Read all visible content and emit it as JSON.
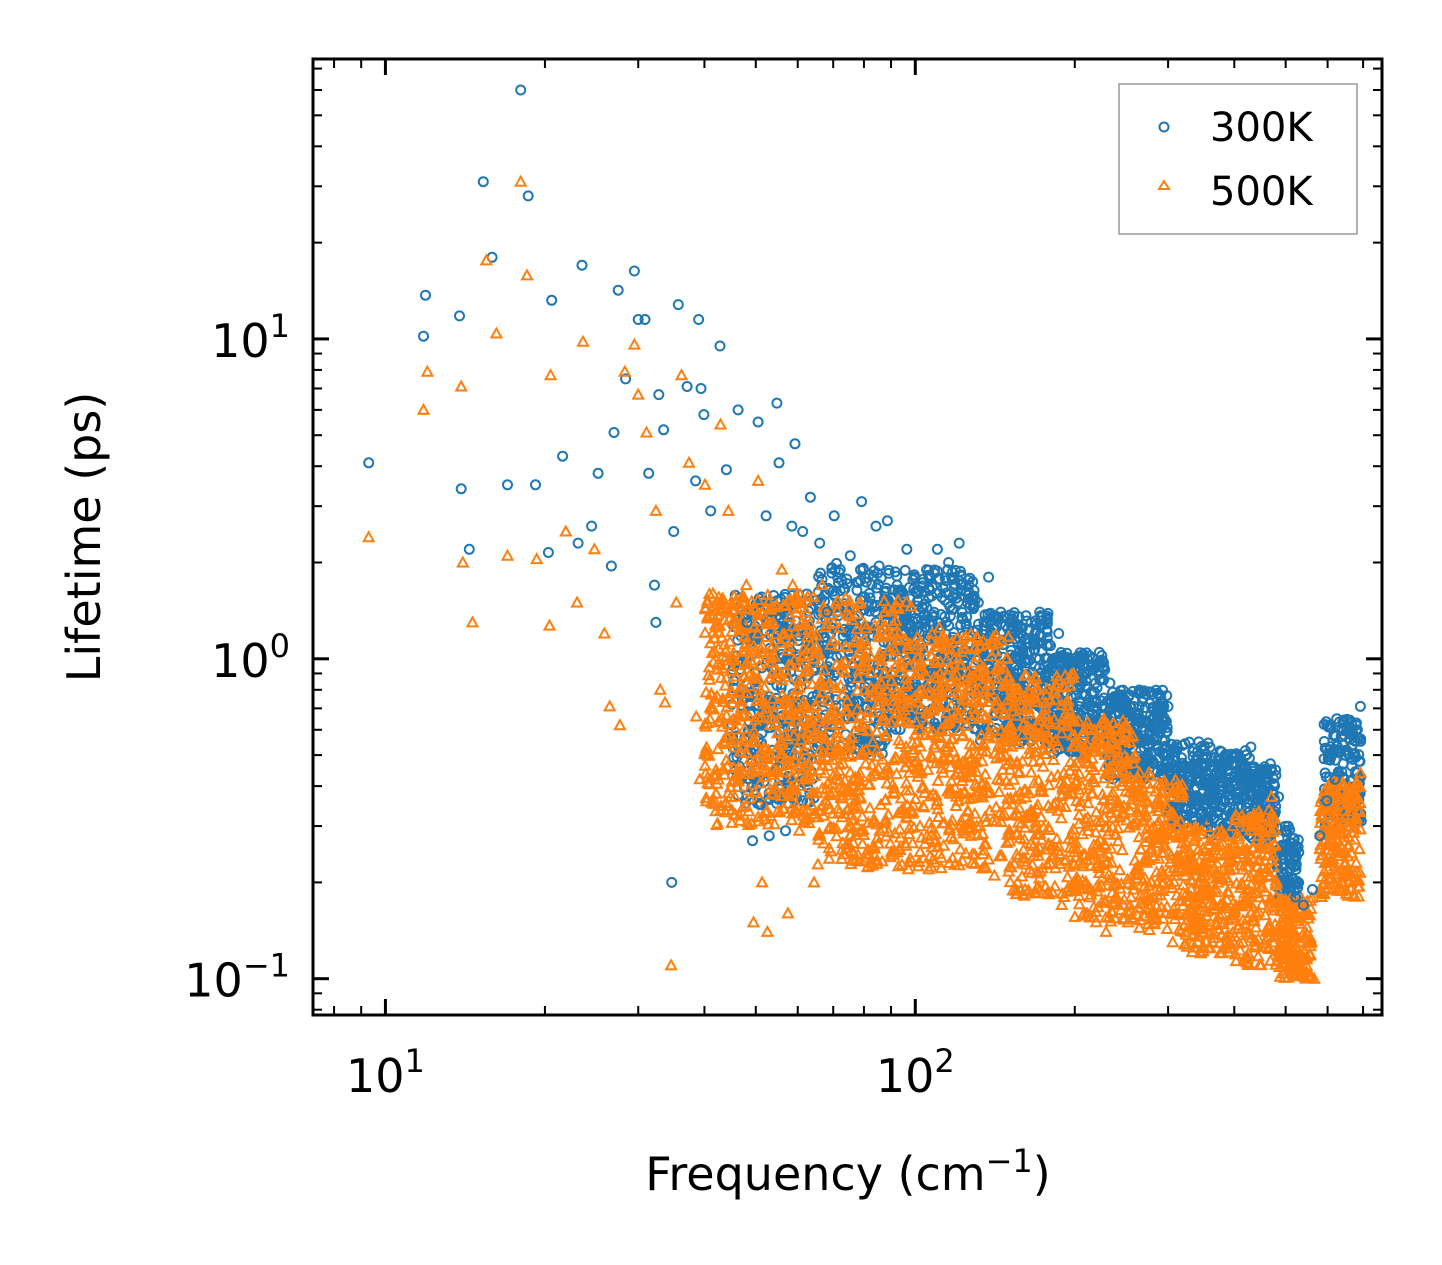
{
  "chart_data": {
    "type": "scatter",
    "xscale": "log",
    "yscale": "log",
    "xlim": [
      7.3,
      760
    ],
    "ylim": [
      0.077,
      75
    ],
    "xlabel": {
      "base": "Frequency (cm",
      "sup": "−1",
      "close": ")"
    },
    "ylabel": "Lifetime (ps)",
    "xticks": [
      {
        "value": 10,
        "base": "10",
        "exp": "1"
      },
      {
        "value": 100,
        "base": "10",
        "exp": "2"
      }
    ],
    "yticks": [
      {
        "value": 0.1,
        "base": "10",
        "exp": "−1"
      },
      {
        "value": 1,
        "base": "10",
        "exp": "0"
      },
      {
        "value": 10,
        "base": "10",
        "exp": "1"
      }
    ],
    "legend_position": "top-right",
    "series": [
      {
        "name": "300K",
        "marker": "circle",
        "color": "#1f77b4",
        "points": [
          [
            9.3,
            4.1
          ],
          [
            11.8,
            10.2
          ],
          [
            11.9,
            13.7
          ],
          [
            13.8,
            11.8
          ],
          [
            13.9,
            3.4
          ],
          [
            14.4,
            2.2
          ],
          [
            15.3,
            31.0
          ],
          [
            15.9,
            18.0
          ],
          [
            17.0,
            3.5
          ],
          [
            18.0,
            60.0
          ],
          [
            18.6,
            28.0
          ],
          [
            19.2,
            3.5
          ],
          [
            20.3,
            2.15
          ],
          [
            20.6,
            13.2
          ],
          [
            21.6,
            4.3
          ],
          [
            23.1,
            2.3
          ],
          [
            23.5,
            17.0
          ],
          [
            24.5,
            2.6
          ],
          [
            25.2,
            3.8
          ],
          [
            26.7,
            1.95
          ],
          [
            27.0,
            5.1
          ],
          [
            27.5,
            14.2
          ],
          [
            28.4,
            7.5
          ],
          [
            29.5,
            16.3
          ],
          [
            30.0,
            11.5
          ],
          [
            30.9,
            11.5
          ],
          [
            31.4,
            3.8
          ],
          [
            32.2,
            1.7
          ],
          [
            32.4,
            1.3
          ],
          [
            32.8,
            6.7
          ],
          [
            33.5,
            5.2
          ],
          [
            34.7,
            0.2
          ],
          [
            35.0,
            2.5
          ],
          [
            35.7,
            12.8
          ],
          [
            37.1,
            7.1
          ],
          [
            38.5,
            3.6
          ],
          [
            39.0,
            11.5
          ],
          [
            39.4,
            7.0
          ],
          [
            39.9,
            5.8
          ],
          [
            41.1,
            2.9
          ],
          [
            42.8,
            9.5
          ],
          [
            44.0,
            3.9
          ],
          [
            46.3,
            6.0
          ],
          [
            48.1,
            1.3
          ],
          [
            49.3,
            0.27
          ],
          [
            50.5,
            5.5
          ],
          [
            51.0,
            0.35
          ],
          [
            52.3,
            2.8
          ],
          [
            53.0,
            0.28
          ],
          [
            54.8,
            6.3
          ],
          [
            55.3,
            4.1
          ],
          [
            56.9,
            0.29
          ],
          [
            58.5,
            2.6
          ],
          [
            59.3,
            4.7
          ],
          [
            61.3,
            2.5
          ],
          [
            63.4,
            3.2
          ],
          [
            66.0,
            2.3
          ],
          [
            68.2,
            1.4
          ],
          [
            70.3,
            2.8
          ],
          [
            72.2,
            1.9
          ],
          [
            75.4,
            2.1
          ],
          [
            79.2,
            3.1
          ],
          [
            81.8,
            1.6
          ],
          [
            84.3,
            2.6
          ],
          [
            88.6,
            2.7
          ],
          [
            92.4,
            1.7
          ],
          [
            96.4,
            2.2
          ],
          [
            101.0,
            1.6
          ],
          [
            105.0,
            1.9
          ],
          [
            110.1,
            2.2
          ],
          [
            115.6,
            2.0
          ],
          [
            121.0,
            2.3
          ],
          [
            126.2,
            1.7
          ],
          [
            131.5,
            1.5
          ],
          [
            137.5,
            1.8
          ],
          [
            145.0,
            1.4
          ],
          [
            150.6,
            1.3
          ],
          [
            158.0,
            1.2
          ],
          [
            165.4,
            1.3
          ],
          [
            171.7,
            1.4
          ],
          [
            180.0,
            1.1
          ],
          [
            186.5,
            1.2
          ],
          [
            195.9,
            1.0
          ],
          [
            204.0,
            1.0
          ],
          [
            213.5,
            0.92
          ],
          [
            223.0,
            0.86
          ],
          [
            233.0,
            0.84
          ],
          [
            245.0,
            0.76
          ],
          [
            258.0,
            0.71
          ],
          [
            270.0,
            0.64
          ],
          [
            285.0,
            0.56
          ],
          [
            300.0,
            0.5
          ],
          [
            318.0,
            0.44
          ],
          [
            338.0,
            0.36
          ],
          [
            355.0,
            0.31
          ],
          [
            372.0,
            0.36
          ],
          [
            392.0,
            0.42
          ],
          [
            412.0,
            0.48
          ],
          [
            430.0,
            0.53
          ],
          [
            450.0,
            0.43
          ],
          [
            468.0,
            0.47
          ],
          [
            485.0,
            0.37
          ],
          [
            503.0,
            0.25
          ],
          [
            522.0,
            0.18
          ],
          [
            540.0,
            0.17
          ],
          [
            562.0,
            0.19
          ],
          [
            580.0,
            0.28
          ],
          [
            598.0,
            0.36
          ],
          [
            620.0,
            0.42
          ],
          [
            642.0,
            0.47
          ],
          [
            662.0,
            0.56
          ],
          [
            680.0,
            0.63
          ],
          [
            692.0,
            0.71
          ]
        ]
      },
      {
        "name": "500K",
        "marker": "triangle",
        "color": "#ff7f0e",
        "points": [
          [
            9.3,
            2.4
          ],
          [
            11.8,
            6.0
          ],
          [
            12.0,
            7.9
          ],
          [
            13.9,
            7.1
          ],
          [
            14.0,
            2.0
          ],
          [
            14.6,
            1.3
          ],
          [
            15.5,
            17.6
          ],
          [
            16.2,
            10.4
          ],
          [
            17.0,
            2.1
          ],
          [
            18.0,
            31.0
          ],
          [
            18.5,
            15.8
          ],
          [
            19.3,
            2.05
          ],
          [
            20.4,
            1.27
          ],
          [
            20.5,
            7.7
          ],
          [
            21.9,
            2.5
          ],
          [
            23.0,
            1.5
          ],
          [
            23.6,
            9.8
          ],
          [
            24.8,
            2.2
          ],
          [
            25.9,
            1.2
          ],
          [
            26.5,
            0.71
          ],
          [
            27.7,
            0.62
          ],
          [
            28.3,
            7.9
          ],
          [
            29.5,
            9.6
          ],
          [
            30.0,
            6.7
          ],
          [
            31.1,
            5.1
          ],
          [
            32.4,
            2.9
          ],
          [
            33.0,
            0.8
          ],
          [
            33.7,
            0.73
          ],
          [
            34.6,
            0.11
          ],
          [
            35.4,
            1.5
          ],
          [
            36.2,
            7.7
          ],
          [
            37.4,
            4.1
          ],
          [
            38.6,
            0.66
          ],
          [
            39.2,
            0.42
          ],
          [
            40.1,
            3.5
          ],
          [
            41.5,
            1.6
          ],
          [
            42.9,
            5.4
          ],
          [
            44.4,
            2.9
          ],
          [
            45.9,
            0.43
          ],
          [
            48.0,
            1.7
          ],
          [
            49.5,
            0.15
          ],
          [
            50.5,
            3.6
          ],
          [
            51.4,
            0.2
          ],
          [
            52.6,
            0.14
          ],
          [
            54.0,
            0.38
          ],
          [
            56.0,
            1.9
          ],
          [
            57.5,
            0.16
          ],
          [
            58.7,
            1.7
          ],
          [
            60.4,
            0.29
          ],
          [
            62.3,
            1.4
          ],
          [
            64.4,
            0.2
          ],
          [
            66.7,
            1.7
          ],
          [
            69.3,
            0.25
          ],
          [
            72.0,
            1.25
          ],
          [
            75.4,
            0.28
          ],
          [
            78.8,
            1.5
          ],
          [
            82.0,
            0.23
          ],
          [
            86.0,
            1.3
          ],
          [
            89.7,
            0.24
          ],
          [
            93.2,
            1.2
          ],
          [
            97.0,
            0.22
          ],
          [
            101.0,
            1.1
          ],
          [
            106.0,
            0.22
          ],
          [
            111.0,
            1.25
          ],
          [
            116.0,
            0.23
          ],
          [
            122.0,
            1.05
          ],
          [
            128.0,
            0.23
          ],
          [
            134.0,
            0.94
          ],
          [
            141.0,
            0.21
          ],
          [
            148.0,
            0.82
          ],
          [
            156.0,
            0.2
          ],
          [
            164.0,
            0.78
          ],
          [
            172.0,
            0.19
          ],
          [
            180.0,
            0.74
          ],
          [
            189.0,
            0.17
          ],
          [
            198.0,
            0.66
          ],
          [
            208.0,
            0.16
          ],
          [
            218.0,
            0.6
          ],
          [
            229.0,
            0.14
          ],
          [
            240.0,
            0.52
          ],
          [
            252.0,
            0.15
          ],
          [
            265.0,
            0.44
          ],
          [
            278.0,
            0.16
          ],
          [
            292.0,
            0.38
          ],
          [
            306.0,
            0.13
          ],
          [
            322.0,
            0.29
          ],
          [
            338.0,
            0.16
          ],
          [
            352.0,
            0.21
          ],
          [
            366.0,
            0.14
          ],
          [
            382.0,
            0.22
          ],
          [
            398.0,
            0.3
          ],
          [
            415.0,
            0.13
          ],
          [
            433.0,
            0.32
          ],
          [
            452.0,
            0.29
          ],
          [
            470.0,
            0.37
          ],
          [
            490.0,
            0.14
          ],
          [
            510.0,
            0.12
          ],
          [
            530.0,
            0.11
          ],
          [
            548.0,
            0.105
          ],
          [
            566.0,
            0.1
          ],
          [
            584.0,
            0.18
          ],
          [
            602.0,
            0.22
          ],
          [
            622.0,
            0.26
          ],
          [
            642.0,
            0.31
          ],
          [
            662.0,
            0.36
          ],
          [
            680.0,
            0.41
          ],
          [
            692.0,
            0.44
          ]
        ]
      }
    ],
    "bands": [
      {
        "series": "300K",
        "ranges": [
          [
            45,
            65,
            0.35,
            1.6
          ],
          [
            65,
            90,
            0.5,
            2.0
          ],
          [
            90,
            130,
            0.6,
            1.9
          ],
          [
            130,
            180,
            0.55,
            1.4
          ],
          [
            180,
            230,
            0.5,
            1.05
          ],
          [
            230,
            300,
            0.42,
            0.8
          ],
          [
            300,
            360,
            0.3,
            0.55
          ],
          [
            360,
            430,
            0.28,
            0.52
          ],
          [
            430,
            480,
            0.27,
            0.46
          ],
          [
            480,
            530,
            0.17,
            0.3
          ],
          [
            590,
            695,
            0.3,
            0.65
          ]
        ]
      },
      {
        "series": "500K",
        "ranges": [
          [
            40,
            65,
            0.3,
            1.6
          ],
          [
            65,
            100,
            0.22,
            1.55
          ],
          [
            100,
            150,
            0.22,
            1.2
          ],
          [
            150,
            200,
            0.18,
            0.9
          ],
          [
            200,
            260,
            0.15,
            0.65
          ],
          [
            260,
            320,
            0.14,
            0.45
          ],
          [
            320,
            400,
            0.12,
            0.3
          ],
          [
            400,
            480,
            0.11,
            0.34
          ],
          [
            480,
            560,
            0.1,
            0.18
          ],
          [
            580,
            695,
            0.18,
            0.42
          ]
        ]
      }
    ]
  }
}
